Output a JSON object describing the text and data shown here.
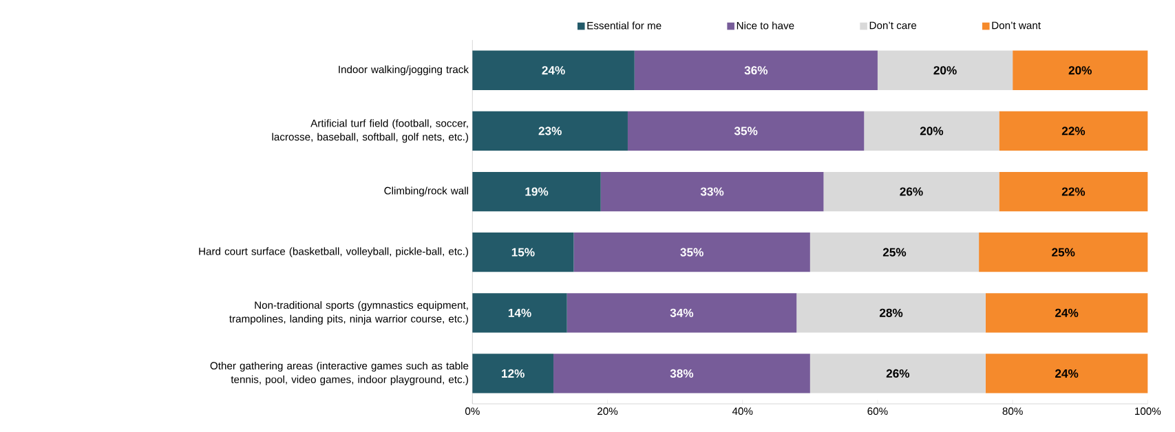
{
  "chart_data": {
    "type": "bar",
    "orientation": "horizontal",
    "stacked": true,
    "legend": "top",
    "categories": [
      "Indoor walking/jogging track",
      "Artificial turf field (football, soccer, lacrosse, baseball, softball, golf nets, etc.)",
      "Climbing/rock wall",
      "Hard court surface (basketball, volleyball, pickle-ball, etc.)",
      "Non-traditional sports (gymnastics equipment, trampolines, landing pits, ninja warrior course, etc.)",
      "Other gathering areas (interactive games such as table tennis, pool, video games, indoor playground, etc.)"
    ],
    "series": [
      {
        "name": "Essential for me",
        "color": "#235a69",
        "values": [
          24,
          23,
          19,
          15,
          14,
          12
        ],
        "value_labels": [
          "24%",
          "23%",
          "19%",
          "15%",
          "14%",
          "12%"
        ]
      },
      {
        "name": "Nice to have",
        "color": "#775c99",
        "values": [
          36,
          35,
          33,
          35,
          34,
          38
        ],
        "value_labels": [
          "36%",
          "35%",
          "33%",
          "35%",
          "34%",
          "38%"
        ]
      },
      {
        "name": "Don’t care",
        "color": "#d9d9d9",
        "values": [
          20,
          20,
          26,
          25,
          28,
          26
        ],
        "value_labels": [
          "20%",
          "20%",
          "26%",
          "25%",
          "28%",
          "26%"
        ]
      },
      {
        "name": "Don’t want",
        "color": "#f58a2c",
        "values": [
          20,
          22,
          22,
          25,
          24,
          24
        ],
        "value_labels": [
          "20%",
          "22%",
          "22%",
          "25%",
          "24%",
          "24%"
        ]
      }
    ],
    "xlim": [
      0,
      100
    ],
    "xticks": [
      {
        "value": 0,
        "label": "0%"
      },
      {
        "value": 20,
        "label": "20%"
      },
      {
        "value": 40,
        "label": "40%"
      },
      {
        "value": 60,
        "label": "60%"
      },
      {
        "value": 80,
        "label": "80%"
      },
      {
        "value": 100,
        "label": "100%"
      }
    ]
  }
}
